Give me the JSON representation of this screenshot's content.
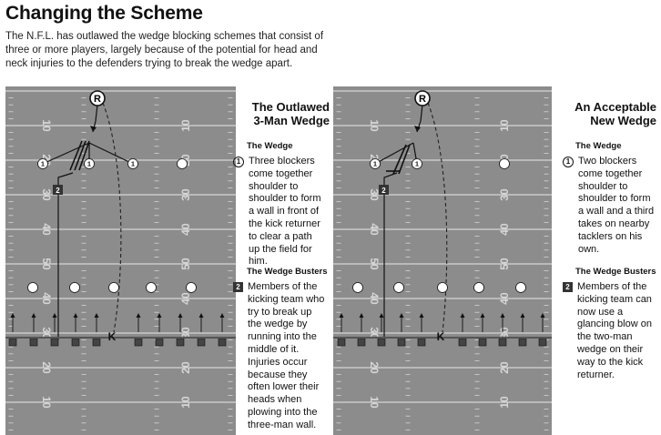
{
  "title": "Changing the Scheme",
  "intro": "The N.F.L. has outlawed the wedge blocking schemes that consist of three or more players, largely because of the potential for head and neck injuries to the defenders trying to break the wedge apart.",
  "field": {
    "yard_numbers": [
      "10",
      "20",
      "30",
      "40",
      "50",
      "40",
      "30",
      "20",
      "10"
    ],
    "returner_label": "R",
    "kicker_label": "K",
    "blocker_label": "1",
    "buster_label": "2"
  },
  "left_panel": {
    "title": "The Outlawed 3-Man Wedge",
    "wedge_head": "The Wedge",
    "wedge_num": "1",
    "wedge_text": "Three blockers come together shoulder to shoulder to form a wall in front of the kick returner to clear a path up the field for him.",
    "busters_head": "The Wedge Busters",
    "busters_num": "2",
    "busters_text": "Members of the kicking team who try to break up the wedge by running into the middle of it. Injuries occur because they often lower their heads when plowing into the three-man wall."
  },
  "right_panel": {
    "title": "An Acceptable New Wedge",
    "wedge_head": "The Wedge",
    "wedge_num": "1",
    "wedge_text": "Two blockers come together shoulder to shoulder to form a wall and a third takes on nearby tacklers on his own.",
    "busters_head": "The Wedge Busters",
    "busters_num": "2",
    "busters_text": "Members of the kicking team can now use a glancing blow on the two-man wedge on their way to the kick returner."
  },
  "colors": {
    "turf": "#8c8c8c",
    "yard_line": "#d6d6d6",
    "player_fill": "#ffffff",
    "buster_fill": "#333333"
  }
}
